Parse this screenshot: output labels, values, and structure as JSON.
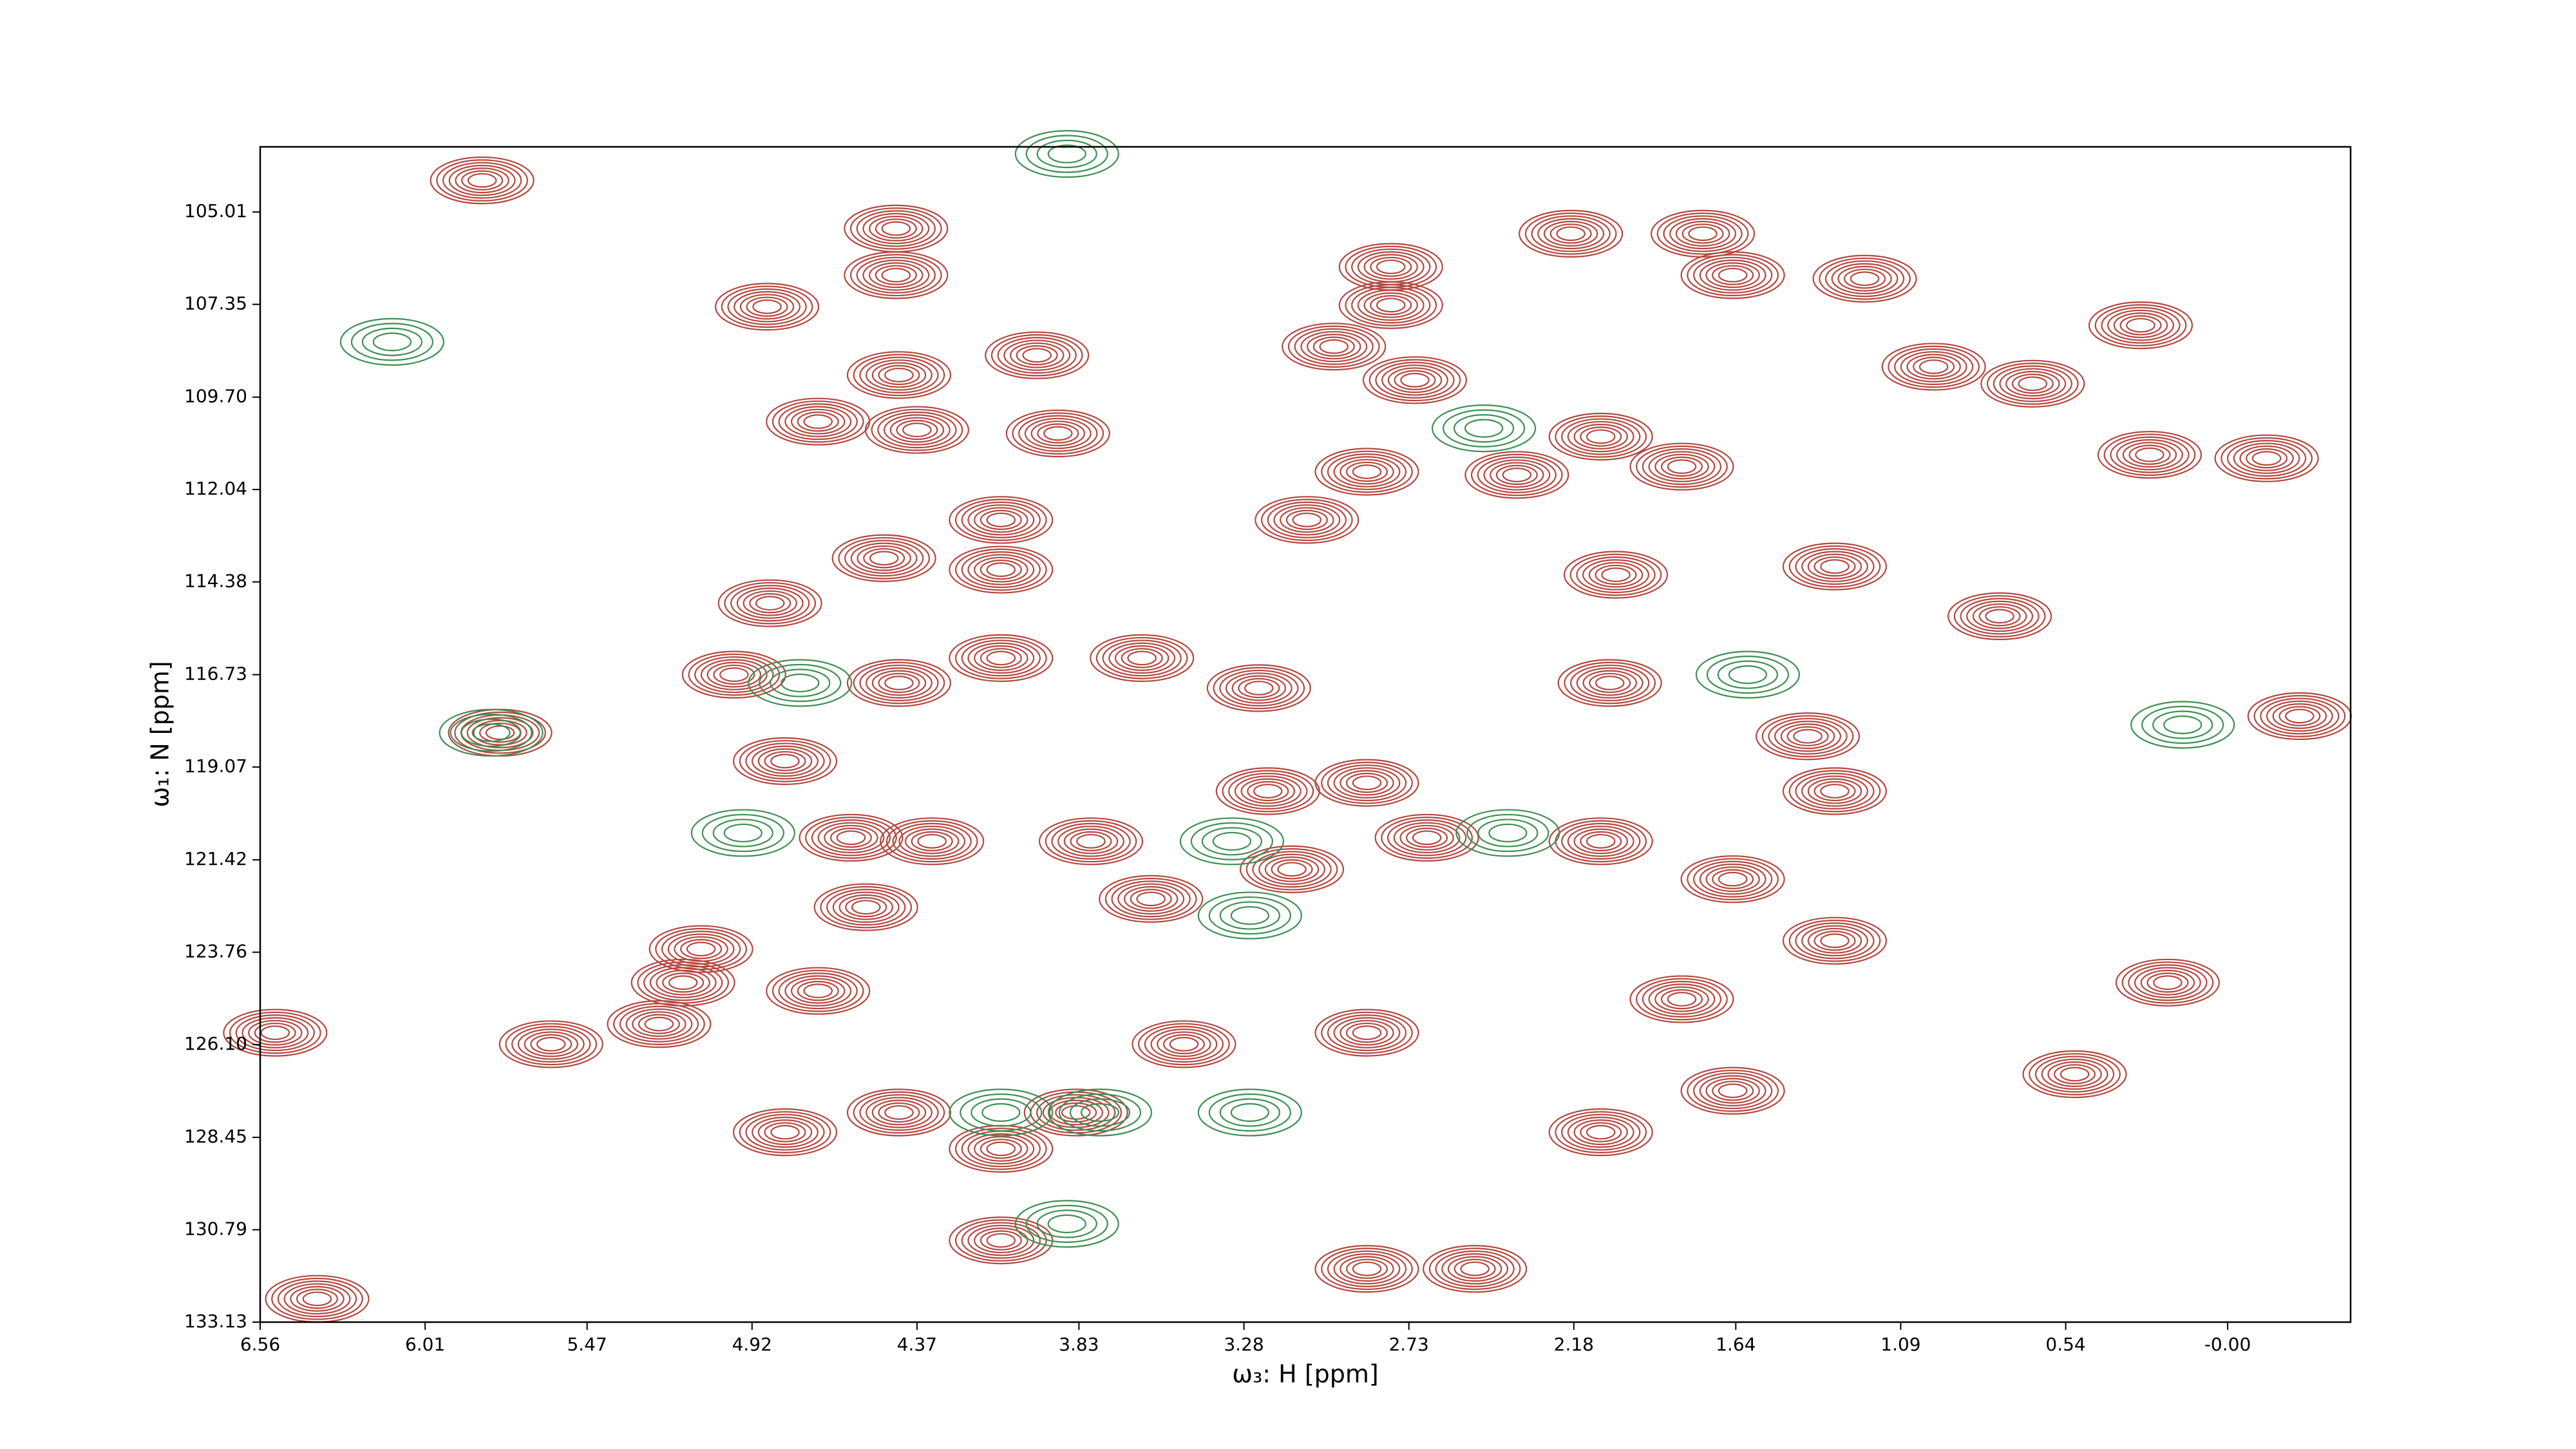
{
  "chart_data": {
    "type": "contour",
    "xlabel": "ω₃: H [ppm]",
    "ylabel": "ω₁: N [ppm]",
    "xlim": [
      6.56,
      -0.41
    ],
    "ylim": [
      133.13,
      103.36
    ],
    "xticks": [
      6.56,
      6.01,
      5.47,
      4.92,
      4.37,
      3.83,
      3.28,
      2.73,
      2.18,
      1.64,
      1.09,
      0.54,
      {
        "value": 0,
        "label": "-0.00"
      }
    ],
    "yticks": [
      105.01,
      107.35,
      {
        "value": 109.7,
        "label": "109.70"
      },
      112.04,
      114.38,
      116.73,
      119.07,
      121.42,
      123.76,
      {
        "value": 126.1,
        "label": "126.10"
      },
      128.45,
      130.79,
      133.13
    ],
    "series": [
      {
        "color": "#b5473f",
        "x": [
          4.44,
          4.44,
          4.87,
          3.97,
          4.7,
          4.37,
          3.9,
          4.43,
          2.79,
          2.79,
          2.98,
          2.71,
          2.87,
          2.19,
          1.75,
          1.65,
          1.21,
          2.09,
          1.82,
          2.37,
          3.07,
          4.09,
          4.09,
          4.48,
          4.86,
          4.43,
          4.09,
          3.62,
          2.06,
          2.04,
          1.31,
          3.23,
          1.4,
          4.81,
          4.59,
          4.32,
          3.79,
          3.2,
          2.87,
          2.67,
          2.09,
          3.12,
          1.65,
          1.31,
          3.59,
          4.54,
          5.09,
          5.15,
          1.31,
          4.7,
          5.59,
          5.23,
          3.48,
          2.87,
          4.43,
          3.84,
          1.65,
          2.09,
          4.09,
          4.81,
          2.87,
          2.51,
          1.82,
          0.26,
          0.2,
          0.51,
          0.29,
          0.65,
          0.98,
          5.82,
          6.37,
          6.51,
          -0.13,
          0.76,
          -0.24,
          5.76,
          4.98,
          4.09
        ],
        "y": [
          105.43,
          106.61,
          107.41,
          108.64,
          110.32,
          110.53,
          110.62,
          109.14,
          106.4,
          107.37,
          108.42,
          109.27,
          111.59,
          105.56,
          105.56,
          106.61,
          106.7,
          110.7,
          111.46,
          111.67,
          112.81,
          112.81,
          114.07,
          113.78,
          114.92,
          116.94,
          116.31,
          116.31,
          116.94,
          114.2,
          113.99,
          117.07,
          118.29,
          118.92,
          120.86,
          120.95,
          120.95,
          119.68,
          119.47,
          120.86,
          120.95,
          121.66,
          121.91,
          119.68,
          122.41,
          122.62,
          123.68,
          124.53,
          123.47,
          124.74,
          126.09,
          125.58,
          126.09,
          125.8,
          127.82,
          127.82,
          127.27,
          128.32,
          128.74,
          128.32,
          131.78,
          131.78,
          124.95,
          111.16,
          124.53,
          126.85,
          107.88,
          109.36,
          108.93,
          104.21,
          132.54,
          125.8,
          111.25,
          115.25,
          117.78,
          118.2,
          116.73,
          131.06
        ]
      },
      {
        "color": "#3d8f52",
        "x": [
          3.87,
          5.79,
          4.76,
          4.95,
          3.26,
          4.09,
          3.76,
          2.48,
          3.32,
          2.4,
          3.87,
          1.6,
          0.15,
          3.26,
          6.12
        ],
        "y": [
          103.54,
          118.2,
          116.94,
          120.74,
          127.82,
          127.82,
          127.82,
          110.49,
          120.95,
          120.74,
          130.64,
          116.73,
          118.0,
          122.83,
          108.3
        ]
      }
    ]
  }
}
